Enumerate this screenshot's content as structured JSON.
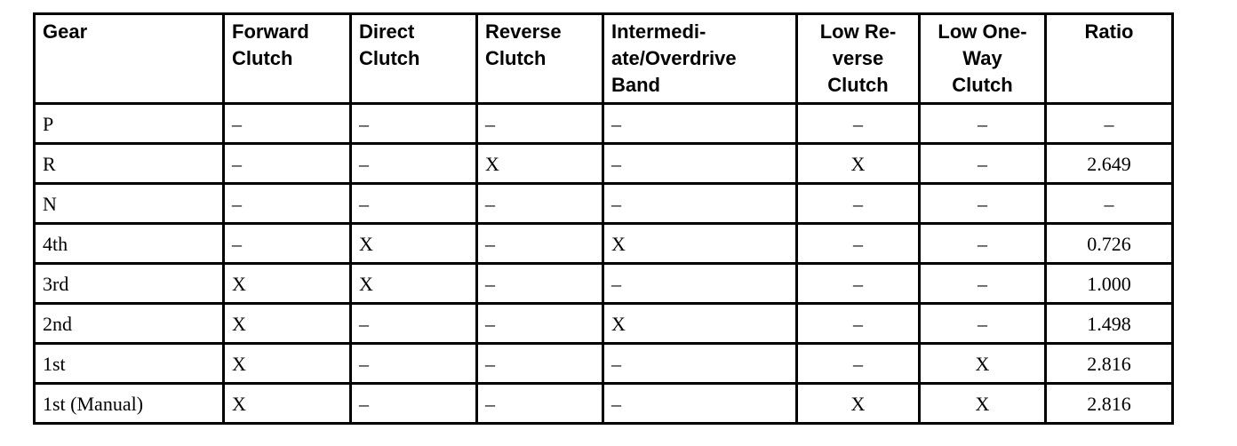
{
  "table": {
    "headers": [
      "Gear",
      "Forward\nClutch",
      "Direct\nClutch",
      "Reverse\nClutch",
      "Intermedi-\nate/Overdrive\nBand",
      "Low Re-\nverse\nClutch",
      "Low One-\nWay\nClutch",
      "Ratio"
    ],
    "rows": [
      [
        "P",
        "–",
        "–",
        "–",
        "–",
        "–",
        "–",
        "–"
      ],
      [
        "R",
        "–",
        "–",
        "X",
        "–",
        "X",
        "–",
        "2.649"
      ],
      [
        "N",
        "–",
        "–",
        "–",
        "–",
        "–",
        "–",
        "–"
      ],
      [
        "4th",
        "–",
        "X",
        "–",
        "X",
        "–",
        "–",
        "0.726"
      ],
      [
        "3rd",
        "X",
        "X",
        "–",
        "–",
        "–",
        "–",
        "1.000"
      ],
      [
        "2nd",
        "X",
        "–",
        "–",
        "X",
        "–",
        "–",
        "1.498"
      ],
      [
        "1st",
        "X",
        "–",
        "–",
        "–",
        "–",
        "X",
        "2.816"
      ],
      [
        "1st (Manual)",
        "X",
        "–",
        "–",
        "–",
        "X",
        "X",
        "2.816"
      ]
    ]
  }
}
